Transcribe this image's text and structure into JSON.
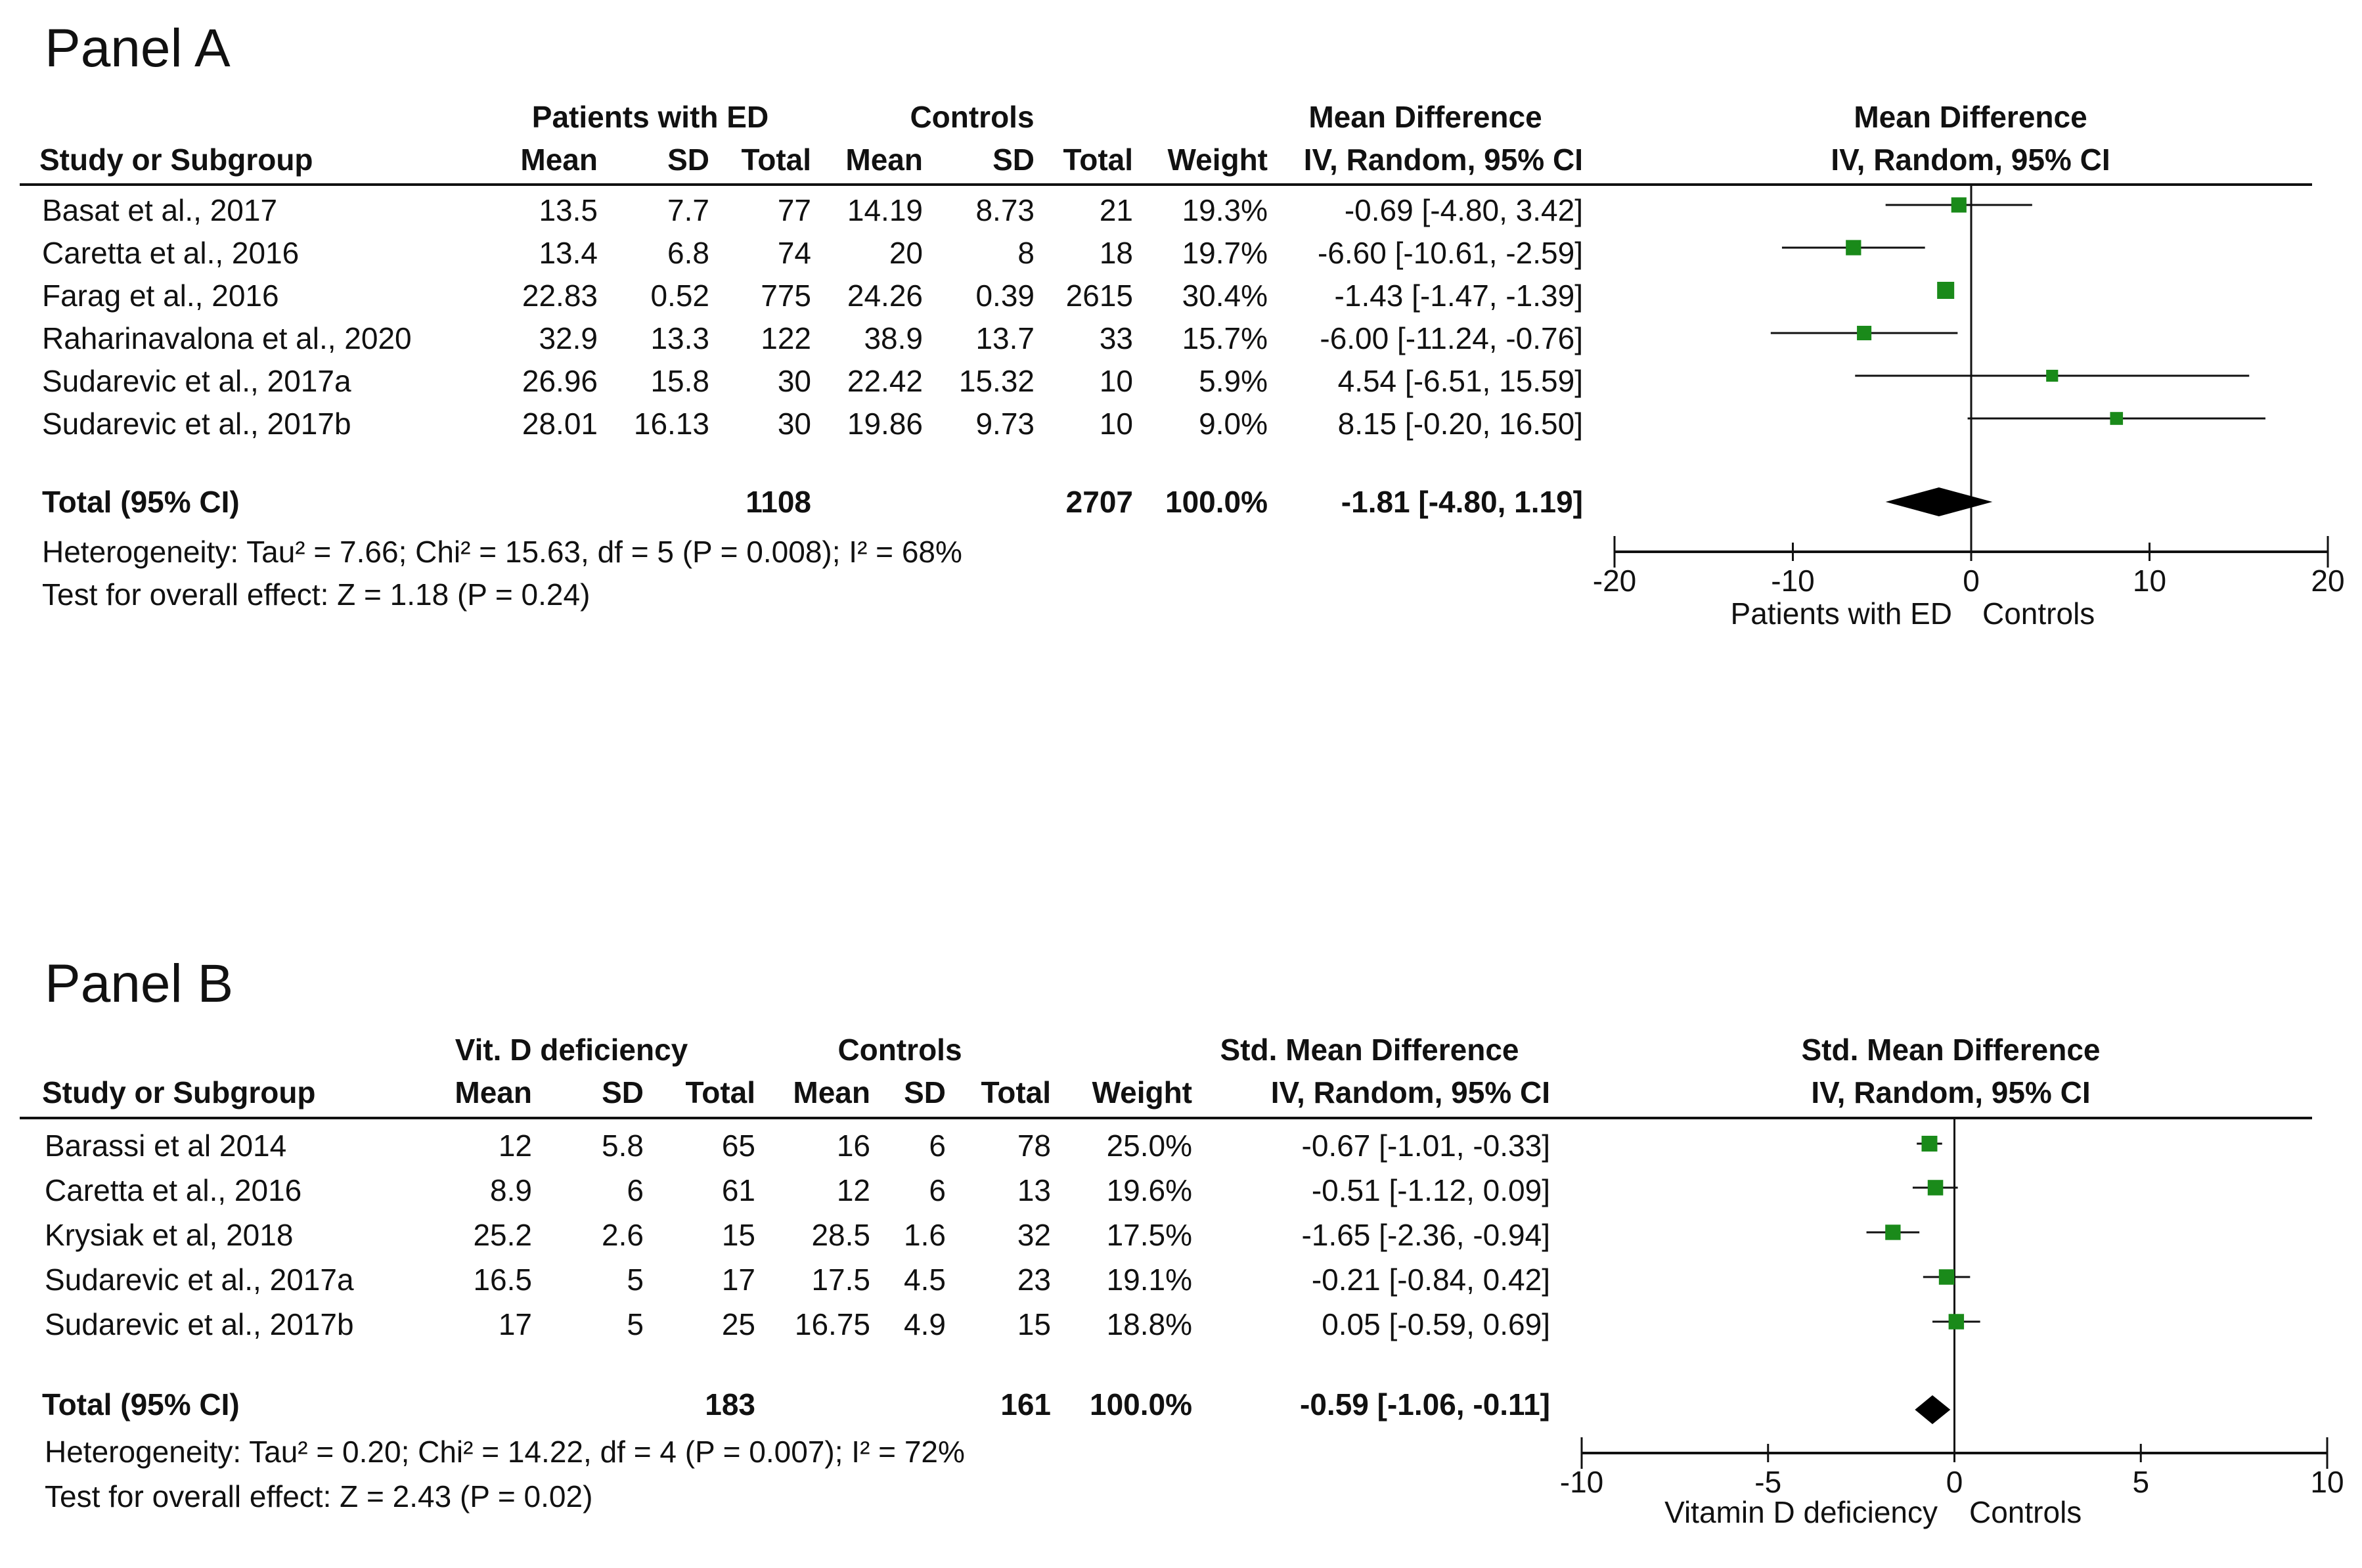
{
  "chart_data": [
    {
      "type": "forest",
      "panel_title": "Panel A",
      "group1_label": "Patients with ED",
      "group2_label": "Controls",
      "effect_header_top": "Mean Difference",
      "effect_header_bottom": "IV, Random, 95% CI",
      "plot_header_top": "Mean Difference",
      "plot_header_bottom": "IV, Random, 95% CI",
      "columns": [
        "Study or Subgroup",
        "Mean",
        "SD",
        "Total",
        "Mean",
        "SD",
        "Total",
        "Weight"
      ],
      "studies": [
        {
          "name": "Basat et al., 2017",
          "m1": "13.5",
          "sd1": "7.7",
          "n1": "77",
          "m2": "14.19",
          "sd2": "8.73",
          "n2": "21",
          "weight": "19.3%",
          "ci_text": "-0.69 [-4.80, 3.42]",
          "est": -0.69,
          "lo": -4.8,
          "hi": 3.42,
          "w": 19.3
        },
        {
          "name": "Caretta et al., 2016",
          "m1": "13.4",
          "sd1": "6.8",
          "n1": "74",
          "m2": "20",
          "sd2": "8",
          "n2": "18",
          "weight": "19.7%",
          "ci_text": "-6.60 [-10.61, -2.59]",
          "est": -6.6,
          "lo": -10.61,
          "hi": -2.59,
          "w": 19.7
        },
        {
          "name": "Farag et al., 2016",
          "m1": "22.83",
          "sd1": "0.52",
          "n1": "775",
          "m2": "24.26",
          "sd2": "0.39",
          "n2": "2615",
          "weight": "30.4%",
          "ci_text": "-1.43 [-1.47, -1.39]",
          "est": -1.43,
          "lo": -1.47,
          "hi": -1.39,
          "w": 30.4
        },
        {
          "name": "Raharinavalona et al., 2020",
          "m1": "32.9",
          "sd1": "13.3",
          "n1": "122",
          "m2": "38.9",
          "sd2": "13.7",
          "n2": "33",
          "weight": "15.7%",
          "ci_text": "-6.00 [-11.24, -0.76]",
          "est": -6.0,
          "lo": -11.24,
          "hi": -0.76,
          "w": 15.7
        },
        {
          "name": "Sudarevic et al., 2017a",
          "m1": "26.96",
          "sd1": "15.8",
          "n1": "30",
          "m2": "22.42",
          "sd2": "15.32",
          "n2": "10",
          "weight": "5.9%",
          "ci_text": "4.54 [-6.51, 15.59]",
          "est": 4.54,
          "lo": -6.51,
          "hi": 15.59,
          "w": 5.9
        },
        {
          "name": "Sudarevic et al., 2017b",
          "m1": "28.01",
          "sd1": "16.13",
          "n1": "30",
          "m2": "19.86",
          "sd2": "9.73",
          "n2": "10",
          "weight": "9.0%",
          "ci_text": "8.15 [-0.20, 16.50]",
          "est": 8.15,
          "lo": -0.2,
          "hi": 16.5,
          "w": 9.0
        }
      ],
      "total": {
        "name": "Total (95% CI)",
        "n1": "1108",
        "n2": "2707",
        "weight": "100.0%",
        "ci_text": "-1.81 [-4.80, 1.19]",
        "est": -1.81,
        "lo": -4.8,
        "hi": 1.19
      },
      "heterogeneity": "Heterogeneity: Tau² = 7.66; Chi² = 15.63, df = 5 (P = 0.008); I² = 68%",
      "overall_effect": "Test for overall effect: Z = 1.18 (P = 0.24)",
      "xlim": [
        -20,
        20
      ],
      "ticks": [
        -20,
        -10,
        0,
        10,
        20
      ],
      "tick_labels": [
        "-20",
        "-10",
        "0",
        "10",
        "20"
      ],
      "xlabel_left": "Patients with ED",
      "xlabel_right": "Controls",
      "marker_color": "#1a8a1a"
    },
    {
      "type": "forest",
      "panel_title": "Panel B",
      "group1_label": "Vit. D deficiency",
      "group2_label": "Controls",
      "effect_header_top": "Std. Mean Difference",
      "effect_header_bottom": "IV, Random, 95% CI",
      "plot_header_top": "Std. Mean Difference",
      "plot_header_bottom": "IV, Random, 95% CI",
      "columns": [
        "Study or Subgroup",
        "Mean",
        "SD",
        "Total",
        "Mean",
        "SD",
        "Total",
        "Weight"
      ],
      "studies": [
        {
          "name": "Barassi et al 2014",
          "m1": "12",
          "sd1": "5.8",
          "n1": "65",
          "m2": "16",
          "sd2": "6",
          "n2": "78",
          "weight": "25.0%",
          "ci_text": "-0.67 [-1.01, -0.33]",
          "est": -0.67,
          "lo": -1.01,
          "hi": -0.33,
          "w": 25.0
        },
        {
          "name": "Caretta et al., 2016",
          "m1": "8.9",
          "sd1": "6",
          "n1": "61",
          "m2": "12",
          "sd2": "6",
          "n2": "13",
          "weight": "19.6%",
          "ci_text": "-0.51 [-1.12, 0.09]",
          "est": -0.51,
          "lo": -1.12,
          "hi": 0.09,
          "w": 19.6
        },
        {
          "name": "Krysiak et al, 2018",
          "m1": "25.2",
          "sd1": "2.6",
          "n1": "15",
          "m2": "28.5",
          "sd2": "1.6",
          "n2": "32",
          "weight": "17.5%",
          "ci_text": "-1.65 [-2.36, -0.94]",
          "est": -1.65,
          "lo": -2.36,
          "hi": -0.94,
          "w": 17.5
        },
        {
          "name": "Sudarevic et al., 2017a",
          "m1": "16.5",
          "sd1": "5",
          "n1": "17",
          "m2": "17.5",
          "sd2": "4.5",
          "n2": "23",
          "weight": "19.1%",
          "ci_text": "-0.21 [-0.84, 0.42]",
          "est": -0.21,
          "lo": -0.84,
          "hi": 0.42,
          "w": 19.1
        },
        {
          "name": "Sudarevic et al., 2017b",
          "m1": "17",
          "sd1": "5",
          "n1": "25",
          "m2": "16.75",
          "sd2": "4.9",
          "n2": "15",
          "weight": "18.8%",
          "ci_text": "0.05 [-0.59, 0.69]",
          "est": 0.05,
          "lo": -0.59,
          "hi": 0.69,
          "w": 18.8
        }
      ],
      "total": {
        "name": "Total (95% CI)",
        "n1": "183",
        "n2": "161",
        "weight": "100.0%",
        "ci_text": "-0.59 [-1.06, -0.11]",
        "est": -0.59,
        "lo": -1.06,
        "hi": -0.11
      },
      "heterogeneity": "Heterogeneity: Tau² = 0.20; Chi² = 14.22, df = 4 (P = 0.007); I² = 72%",
      "overall_effect": "Test for overall effect: Z = 2.43 (P = 0.02)",
      "xlim": [
        -10,
        10
      ],
      "ticks": [
        -10,
        -5,
        0,
        5,
        10
      ],
      "tick_labels": [
        "-10",
        "-5",
        "0",
        "5",
        "10"
      ],
      "xlabel_left": "Vitamin D deficiency",
      "xlabel_right": "Controls",
      "marker_color": "#1a8a1a"
    }
  ]
}
